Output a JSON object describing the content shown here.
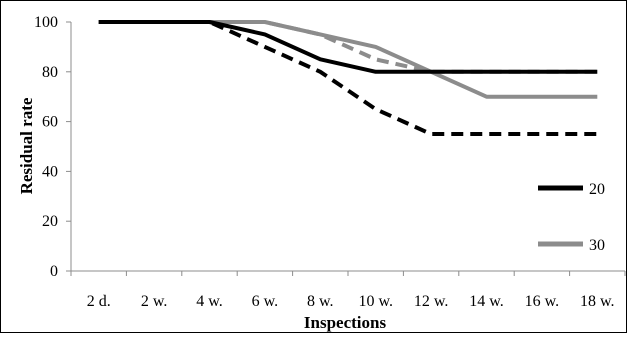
{
  "chart_data": {
    "type": "line",
    "xlabel": "Inspections",
    "ylabel": "Residual rate",
    "ylim": [
      0,
      100
    ],
    "yticks": [
      0,
      20,
      40,
      60,
      80,
      100
    ],
    "categories": [
      "2 d.",
      "2 w.",
      "4 w.",
      "6 w.",
      "8 w.",
      "10 w.",
      "12 w.",
      "14 w.",
      "16 w.",
      "18 w."
    ],
    "grid": false,
    "legend_position": "right",
    "series": [
      {
        "name": "20",
        "color": "#000000",
        "dashed": false,
        "values": [
          100,
          100,
          100,
          95,
          85,
          80,
          80,
          80,
          80,
          80
        ]
      },
      {
        "name": "30",
        "color": "#8c8c8c",
        "dashed": false,
        "values": [
          100,
          100,
          100,
          100,
          95,
          90,
          80,
          70,
          70,
          70
        ]
      },
      {
        "name": "",
        "color": "#000000",
        "dashed": true,
        "values": [
          100,
          100,
          100,
          90,
          80,
          65,
          55,
          55,
          55,
          55
        ]
      },
      {
        "name": "",
        "color": "#8c8c8c",
        "dashed": true,
        "values": [
          100,
          100,
          100,
          100,
          95,
          85,
          80,
          80,
          80,
          80
        ]
      }
    ]
  }
}
